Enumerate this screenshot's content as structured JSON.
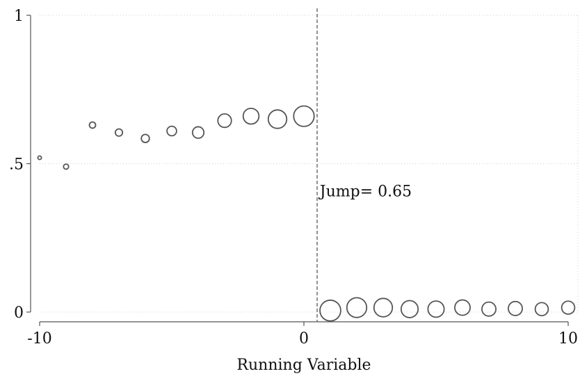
{
  "chart_data": {
    "type": "scatter",
    "xlabel": "Running Variable",
    "ylabel": "",
    "xlim": [
      -10,
      10
    ],
    "ylim": [
      0,
      1
    ],
    "x_ticks": [
      {
        "value": -10,
        "label": "-10"
      },
      {
        "value": 0,
        "label": "0"
      },
      {
        "value": 10,
        "label": "10"
      }
    ],
    "y_ticks": [
      {
        "value": 0,
        "label": "0"
      },
      {
        "value": 0.5,
        "label": ".5"
      },
      {
        "value": 1,
        "label": "1"
      }
    ],
    "grid": true,
    "marker": "hollow-circle",
    "marker_color": "#555555",
    "cutoff": {
      "x": 0.5,
      "style": "dashed",
      "color": "#777777"
    },
    "annotation": {
      "text": "Jump= 0.65",
      "x": 0.6,
      "y": 0.39
    },
    "points": [
      {
        "x": -10,
        "y": 0.52,
        "weight": 1
      },
      {
        "x": -9,
        "y": 0.49,
        "weight": 2
      },
      {
        "x": -8,
        "y": 0.63,
        "weight": 3
      },
      {
        "x": -7,
        "y": 0.605,
        "weight": 4
      },
      {
        "x": -6,
        "y": 0.585,
        "weight": 5
      },
      {
        "x": -5,
        "y": 0.61,
        "weight": 7
      },
      {
        "x": -4,
        "y": 0.605,
        "weight": 10
      },
      {
        "x": -3,
        "y": 0.645,
        "weight": 14
      },
      {
        "x": -2,
        "y": 0.66,
        "weight": 19
      },
      {
        "x": -1,
        "y": 0.65,
        "weight": 26
      },
      {
        "x": 0,
        "y": 0.66,
        "weight": 32
      },
      {
        "x": 1,
        "y": 0.005,
        "weight": 33
      },
      {
        "x": 2,
        "y": 0.015,
        "weight": 30
      },
      {
        "x": 3,
        "y": 0.015,
        "weight": 26
      },
      {
        "x": 4,
        "y": 0.01,
        "weight": 22
      },
      {
        "x": 5,
        "y": 0.01,
        "weight": 20
      },
      {
        "x": 6,
        "y": 0.015,
        "weight": 18
      },
      {
        "x": 7,
        "y": 0.01,
        "weight": 15
      },
      {
        "x": 8,
        "y": 0.012,
        "weight": 15
      },
      {
        "x": 9,
        "y": 0.01,
        "weight": 13
      },
      {
        "x": 10,
        "y": 0.015,
        "weight": 13
      }
    ]
  }
}
